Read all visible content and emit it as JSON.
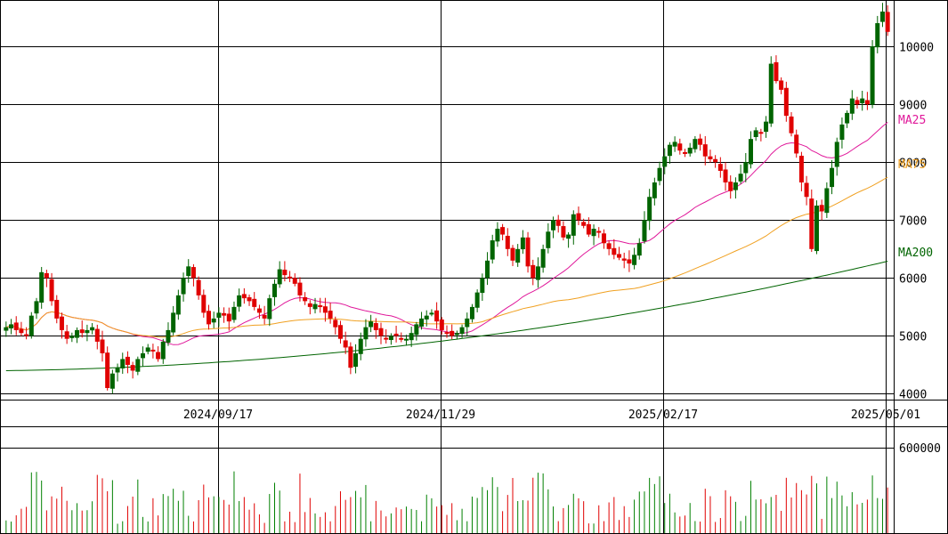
{
  "chart_data": {
    "type": "candlestick",
    "y_ticks": [
      "4000",
      "5000",
      "6000",
      "7000",
      "8000",
      "9000",
      "10000"
    ],
    "x_ticks": [
      "2024/09/17",
      "2024/11/29",
      "2025/02/17",
      "2025/05/01"
    ],
    "volume_tick": "600000",
    "ylim": [
      3900,
      10800
    ],
    "volume_max": 700000,
    "legend": [
      {
        "label": "MA25",
        "color": "#e0189a"
      },
      {
        "label": "MA75",
        "color": "#f0a020"
      },
      {
        "label": "MA200",
        "color": "#006400"
      }
    ],
    "colors": {
      "up": "#e00000",
      "down": "#008000",
      "up_candle": "#006400",
      "down_candle": "#e00000"
    },
    "closes": [
      5150,
      5200,
      5100,
      5050,
      5000,
      5350,
      5600,
      6100,
      6000,
      5600,
      5300,
      5100,
      4950,
      5000,
      5100,
      5050,
      5100,
      5150,
      4900,
      4700,
      4100,
      4350,
      4450,
      4600,
      4500,
      4400,
      4600,
      4700,
      4800,
      4750,
      4600,
      4900,
      5100,
      5400,
      5700,
      6000,
      6200,
      6000,
      5700,
      5400,
      5200,
      5300,
      5400,
      5350,
      5250,
      5500,
      5700,
      5650,
      5600,
      5500,
      5400,
      5300,
      5650,
      5900,
      6150,
      6050,
      6000,
      5900,
      5700,
      5600,
      5500,
      5550,
      5500,
      5400,
      5300,
      5150,
      4950,
      4800,
      4450,
      4700,
      4950,
      5150,
      5250,
      5100,
      5000,
      4950,
      5000,
      5000,
      4950,
      4950,
      5050,
      5200,
      5300,
      5350,
      5400,
      5250,
      5100,
      5050,
      5000,
      5050,
      5150,
      5300,
      5500,
      5750,
      6000,
      6300,
      6650,
      6850,
      6750,
      6500,
      6300,
      6500,
      6700,
      6200,
      6000,
      6200,
      6500,
      6800,
      7000,
      6900,
      6700,
      6750,
      7100,
      7000,
      6900,
      6750,
      6850,
      6800,
      6600,
      6500,
      6400,
      6350,
      6300,
      6250,
      6400,
      6600,
      7000,
      7400,
      7650,
      7900,
      8100,
      8300,
      8350,
      8200,
      8150,
      8250,
      8400,
      8300,
      8100,
      8050,
      8000,
      7850,
      7650,
      7500,
      7650,
      7800,
      8000,
      8400,
      8550,
      8500,
      8700,
      9700,
      9400,
      9250,
      8800,
      8500,
      8150,
      7650,
      7400,
      6500,
      7250,
      7150,
      7550,
      7900,
      8350,
      8650,
      8850,
      9100,
      9000,
      9100,
      9000,
      10000,
      10400,
      10600,
      10250
    ]
  }
}
